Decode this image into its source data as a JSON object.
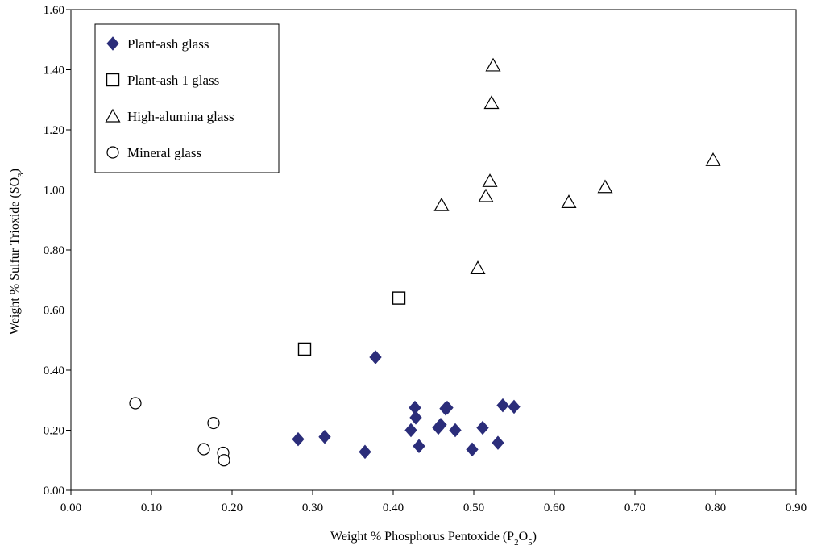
{
  "chart_data": {
    "type": "scatter",
    "title": "",
    "xlabel": {
      "text": "Weight % Phosphorus Pentoxide (P",
      "sub1": "2",
      "mid": "O",
      "sub2": "5",
      "end": ")"
    },
    "ylabel": {
      "text": "Weight % Sulfur Trioxide (SO",
      "sub1": "3",
      "end": ")"
    },
    "xlim": [
      0.0,
      0.9
    ],
    "ylim": [
      0.0,
      1.6
    ],
    "x_ticks": [
      "0.00",
      "0.10",
      "0.20",
      "0.30",
      "0.40",
      "0.50",
      "0.60",
      "0.70",
      "0.80",
      "0.90"
    ],
    "y_ticks": [
      "0.00",
      "0.20",
      "0.40",
      "0.60",
      "0.80",
      "1.00",
      "1.20",
      "1.40",
      "1.60"
    ],
    "grid": false,
    "legend_position": "top-left",
    "series": [
      {
        "name": "Plant-ash glass",
        "marker": "diamond",
        "color": "#2b2d7a",
        "points": [
          [
            0.282,
            0.17
          ],
          [
            0.315,
            0.178
          ],
          [
            0.365,
            0.128
          ],
          [
            0.378,
            0.443
          ],
          [
            0.422,
            0.2
          ],
          [
            0.427,
            0.275
          ],
          [
            0.428,
            0.242
          ],
          [
            0.432,
            0.147
          ],
          [
            0.456,
            0.208
          ],
          [
            0.459,
            0.218
          ],
          [
            0.465,
            0.272
          ],
          [
            0.467,
            0.275
          ],
          [
            0.477,
            0.2
          ],
          [
            0.498,
            0.136
          ],
          [
            0.511,
            0.208
          ],
          [
            0.53,
            0.158
          ],
          [
            0.536,
            0.283
          ],
          [
            0.55,
            0.278
          ]
        ]
      },
      {
        "name": "Plant-ash 1 glass",
        "marker": "square",
        "color": "#000000",
        "points": [
          [
            0.29,
            0.47
          ],
          [
            0.407,
            0.64
          ]
        ]
      },
      {
        "name": "High-alumina glass",
        "marker": "triangle",
        "color": "#000000",
        "points": [
          [
            0.46,
            0.95
          ],
          [
            0.505,
            0.74
          ],
          [
            0.515,
            0.98
          ],
          [
            0.52,
            1.03
          ],
          [
            0.522,
            1.29
          ],
          [
            0.524,
            1.415
          ],
          [
            0.618,
            0.96
          ],
          [
            0.663,
            1.01
          ],
          [
            0.797,
            1.1
          ]
        ]
      },
      {
        "name": "Mineral glass",
        "marker": "circle",
        "color": "#000000",
        "points": [
          [
            0.08,
            0.29
          ],
          [
            0.165,
            0.137
          ],
          [
            0.177,
            0.224
          ],
          [
            0.189,
            0.125
          ],
          [
            0.19,
            0.1
          ]
        ]
      }
    ]
  }
}
